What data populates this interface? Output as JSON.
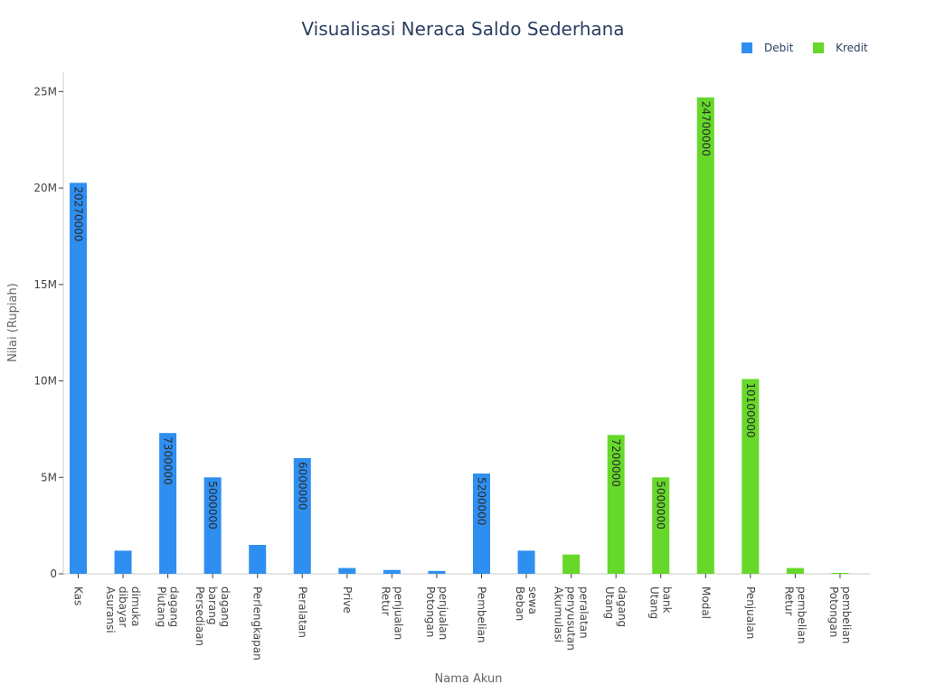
{
  "chart_data": {
    "type": "bar",
    "title": "Visualisasi Neraca Saldo Sederhana",
    "xlabel": "Nama Akun",
    "ylabel": "Nilai (Rupiah)",
    "ylim": [
      0,
      26000000
    ],
    "yticks": [
      {
        "value": 0,
        "label": "0"
      },
      {
        "value": 5000000,
        "label": "5M"
      },
      {
        "value": 10000000,
        "label": "10M"
      },
      {
        "value": 15000000,
        "label": "15M"
      },
      {
        "value": 20000000,
        "label": "20M"
      },
      {
        "value": 25000000,
        "label": "25M"
      }
    ],
    "categories": [
      "Kas",
      "Asuransi dibayar dimuka",
      "Piutang dagang",
      "Persediaan barang dagang",
      "Perlengkapan",
      "Peralatan",
      "Prive",
      "Retur penjualan",
      "Potongan penjualan",
      "Pembelian",
      "Beban sewa",
      "Akumulasi penyusutan peralatan",
      "Utang dagang",
      "Utang bank",
      "Modal",
      "Penjualan",
      "Retur pembelian",
      "Potongan pembelian"
    ],
    "category_lines": [
      [
        "Kas"
      ],
      [
        "Asuransi",
        "dibayar",
        "dimuka"
      ],
      [
        "Piutang",
        "dagang"
      ],
      [
        "Persediaan",
        "barang",
        "dagang"
      ],
      [
        "Perlengkapan"
      ],
      [
        "Peralatan"
      ],
      [
        "Prive"
      ],
      [
        "Retur",
        "penjualan"
      ],
      [
        "Potongan",
        "penjualan"
      ],
      [
        "Pembelian"
      ],
      [
        "Beban",
        "sewa"
      ],
      [
        "Akumulasi",
        "penyusutan",
        "peralatan"
      ],
      [
        "Utang",
        "dagang"
      ],
      [
        "Utang",
        "bank"
      ],
      [
        "Modal"
      ],
      [
        "Penjualan"
      ],
      [
        "Retur",
        "pembelian"
      ],
      [
        "Potongan",
        "pembelian"
      ]
    ],
    "series": [
      {
        "name": "Debit",
        "color": "#2f8ff0",
        "values": [
          20270000,
          1200000,
          7300000,
          5000000,
          1500000,
          6000000,
          300000,
          200000,
          150000,
          5200000,
          1200000,
          null,
          null,
          null,
          null,
          null,
          null,
          null
        ]
      },
      {
        "name": "Kredit",
        "color": "#66d82a",
        "values": [
          null,
          null,
          null,
          null,
          null,
          null,
          null,
          null,
          null,
          null,
          null,
          1000000,
          7200000,
          5000000,
          24700000,
          10100000,
          300000,
          50000
        ]
      }
    ],
    "data_labels": [
      {
        "category": 0,
        "series": 0,
        "text": "20270000"
      },
      {
        "category": 2,
        "series": 0,
        "text": "7300000"
      },
      {
        "category": 3,
        "series": 0,
        "text": "5000000"
      },
      {
        "category": 5,
        "series": 0,
        "text": "6000000"
      },
      {
        "category": 9,
        "series": 0,
        "text": "5200000"
      },
      {
        "category": 12,
        "series": 1,
        "text": "7200000"
      },
      {
        "category": 13,
        "series": 1,
        "text": "5000000"
      },
      {
        "category": 14,
        "series": 1,
        "text": "24700000"
      },
      {
        "category": 15,
        "series": 1,
        "text": "10100000"
      }
    ],
    "grid": false,
    "legend_position": "top-right"
  }
}
